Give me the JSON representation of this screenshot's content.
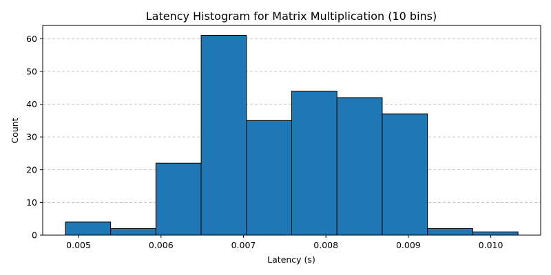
{
  "chart_data": {
    "type": "bar",
    "title": "Latency Histogram for Matrix Multiplication (10 bins)",
    "xlabel": "Latency (s)",
    "ylabel": "Count",
    "bin_edges": [
      0.00484,
      0.005389,
      0.005938,
      0.006487,
      0.007036,
      0.007585,
      0.008134,
      0.008683,
      0.009232,
      0.009781,
      0.01033
    ],
    "values": [
      4,
      2,
      22,
      61,
      35,
      44,
      42,
      37,
      2,
      1
    ],
    "xlim": [
      0.004565,
      0.010605
    ],
    "ylim": [
      0,
      64.05
    ],
    "x_ticks": [
      0.005,
      0.006,
      0.007,
      0.008,
      0.009,
      0.01
    ],
    "x_tick_labels": [
      "0.005",
      "0.006",
      "0.007",
      "0.008",
      "0.009",
      "0.010"
    ],
    "y_ticks": [
      0,
      10,
      20,
      30,
      40,
      50,
      60
    ],
    "y_tick_labels": [
      "0",
      "10",
      "20",
      "30",
      "40",
      "50",
      "60"
    ],
    "grid": "y-dashed",
    "bar_color": "#1f77b4",
    "edge_color": "#000000"
  }
}
